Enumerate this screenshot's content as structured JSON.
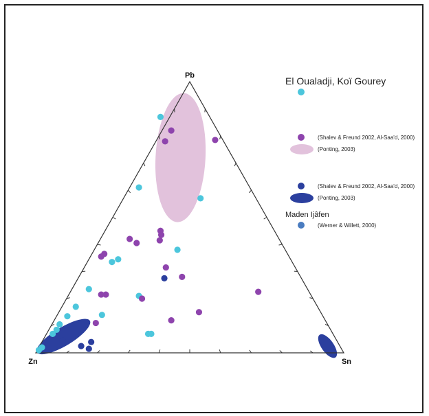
{
  "chart_data": {
    "type": "scatter",
    "subtype": "ternary",
    "vertices": {
      "top": "Pb",
      "left": "Zn",
      "right": "Sn"
    },
    "title": "",
    "colors": {
      "cyan": "#4cc6dc",
      "purple": "#8e44ad",
      "pink": "#e2c2dc",
      "navy": "#2b3f9e",
      "steel": "#4a7cc0",
      "grid": "#333333"
    },
    "legend": {
      "placement": "top-right",
      "entries": [
        {
          "key": "el-oualadji",
          "label": "El Oualadji, Koï Gourey",
          "marker": "dot",
          "color": "cyan"
        },
        {
          "key": "purple-points",
          "label": "(Shalev & Freund 2002, Al-Saa'd, 2000)",
          "marker": "dot",
          "color": "purple"
        },
        {
          "key": "pink-field",
          "label": "(Ponting, 2003)",
          "marker": "ellipse",
          "color": "pink"
        },
        {
          "key": "navy-points",
          "label": "(Shalev & Freund 2002, Al-Saa'd, 2000)",
          "marker": "dot",
          "color": "navy"
        },
        {
          "key": "navy-field",
          "label": "(Ponting, 2003)",
          "marker": "ellipse",
          "color": "navy"
        },
        {
          "key": "maden-heading",
          "label": "Maden Ijâfen",
          "marker": "none"
        },
        {
          "key": "maden",
          "label": "(Werner & Willett, 2000)",
          "marker": "dot",
          "color": "steel"
        }
      ]
    },
    "series": [
      {
        "key": "el-oualadji",
        "color": "cyan",
        "points": [
          {
            "pb": 0.87,
            "zn": 0.16,
            "sn": -0.03
          },
          {
            "pb": 0.61,
            "zn": 0.36,
            "sn": 0.03
          },
          {
            "pb": 0.57,
            "zn": 0.18,
            "sn": 0.25
          },
          {
            "pb": 0.38,
            "zn": 0.35,
            "sn": 0.27
          },
          {
            "pb": 0.345,
            "zn": 0.56,
            "sn": 0.095
          },
          {
            "pb": 0.335,
            "zn": 0.585,
            "sn": 0.08
          },
          {
            "pb": 0.235,
            "zn": 0.71,
            "sn": 0.055
          },
          {
            "pb": 0.21,
            "zn": 0.56,
            "sn": 0.23
          },
          {
            "pb": 0.17,
            "zn": 0.785,
            "sn": 0.045
          },
          {
            "pb": 0.135,
            "zn": 0.83,
            "sn": 0.035
          },
          {
            "pb": 0.14,
            "zn": 0.715,
            "sn": 0.145
          },
          {
            "pb": 0.105,
            "zn": 0.87,
            "sn": 0.025
          },
          {
            "pb": 0.085,
            "zn": 0.89,
            "sn": 0.025
          },
          {
            "pb": 0.07,
            "zn": 0.91,
            "sn": 0.02
          },
          {
            "pb": 0.07,
            "zn": 0.59,
            "sn": 0.34
          },
          {
            "pb": 0.07,
            "zn": 0.6,
            "sn": 0.33
          },
          {
            "pb": 0.02,
            "zn": 0.97,
            "sn": 0.01
          },
          {
            "pb": 0.01,
            "zn": 0.985,
            "sn": 0.005
          }
        ]
      },
      {
        "key": "purple-points",
        "color": "purple",
        "points": [
          {
            "pb": 0.82,
            "zn": 0.15,
            "sn": 0.03
          },
          {
            "pb": 0.78,
            "zn": 0.19,
            "sn": 0.03
          },
          {
            "pb": 0.785,
            "zn": 0.025,
            "sn": 0.19
          },
          {
            "pb": 0.45,
            "zn": 0.37,
            "sn": 0.18
          },
          {
            "pb": 0.435,
            "zn": 0.375,
            "sn": 0.19
          },
          {
            "pb": 0.415,
            "zn": 0.39,
            "sn": 0.195
          },
          {
            "pb": 0.42,
            "zn": 0.485,
            "sn": 0.095
          },
          {
            "pb": 0.405,
            "zn": 0.47,
            "sn": 0.125
          },
          {
            "pb": 0.365,
            "zn": 0.595,
            "sn": 0.04
          },
          {
            "pb": 0.355,
            "zn": 0.61,
            "sn": 0.035
          },
          {
            "pb": 0.315,
            "zn": 0.42,
            "sn": 0.265
          },
          {
            "pb": 0.28,
            "zn": 0.385,
            "sn": 0.335
          },
          {
            "pb": 0.225,
            "zn": 0.165,
            "sn": 0.61
          },
          {
            "pb": 0.215,
            "zn": 0.68,
            "sn": 0.105
          },
          {
            "pb": 0.215,
            "zn": 0.665,
            "sn": 0.12
          },
          {
            "pb": 0.2,
            "zn": 0.555,
            "sn": 0.245
          },
          {
            "pb": 0.15,
            "zn": 0.395,
            "sn": 0.455
          },
          {
            "pb": 0.12,
            "zn": 0.5,
            "sn": 0.38
          },
          {
            "pb": 0.11,
            "zn": 0.75,
            "sn": 0.14
          }
        ]
      },
      {
        "key": "navy-points",
        "color": "navy",
        "points": [
          {
            "pb": 0.275,
            "zn": 0.445,
            "sn": 0.28
          },
          {
            "pb": 0.045,
            "zn": 0.89,
            "sn": 0.065
          },
          {
            "pb": 0.04,
            "zn": 0.8,
            "sn": 0.16
          },
          {
            "pb": 0.025,
            "zn": 0.84,
            "sn": 0.135
          },
          {
            "pb": 0.015,
            "zn": 0.82,
            "sn": 0.165
          }
        ]
      }
    ],
    "fields": [
      {
        "key": "pink-field",
        "color": "pink",
        "center": {
          "pb": 0.72,
          "zn": 0.17,
          "sn": 0.11
        },
        "semi_major": 0.21,
        "semi_minor": 0.081,
        "angle_deg": 93
      },
      {
        "key": "navy-field",
        "color": "navy",
        "center": {
          "pb": 0.06,
          "zn": 0.88,
          "sn": 0.06
        },
        "semi_major": 0.1,
        "semi_minor": 0.03,
        "angle_deg": -31
      },
      {
        "key": "navy-field",
        "color": "navy",
        "center": {
          "pb": 0.025,
          "zn": 0.04,
          "sn": 0.935
        },
        "semi_major": 0.045,
        "semi_minor": 0.02,
        "angle_deg": 55
      }
    ],
    "ticks": [
      0.1,
      0.2,
      0.3,
      0.4,
      0.5,
      0.6,
      0.7,
      0.8,
      0.9
    ],
    "grid": false
  }
}
